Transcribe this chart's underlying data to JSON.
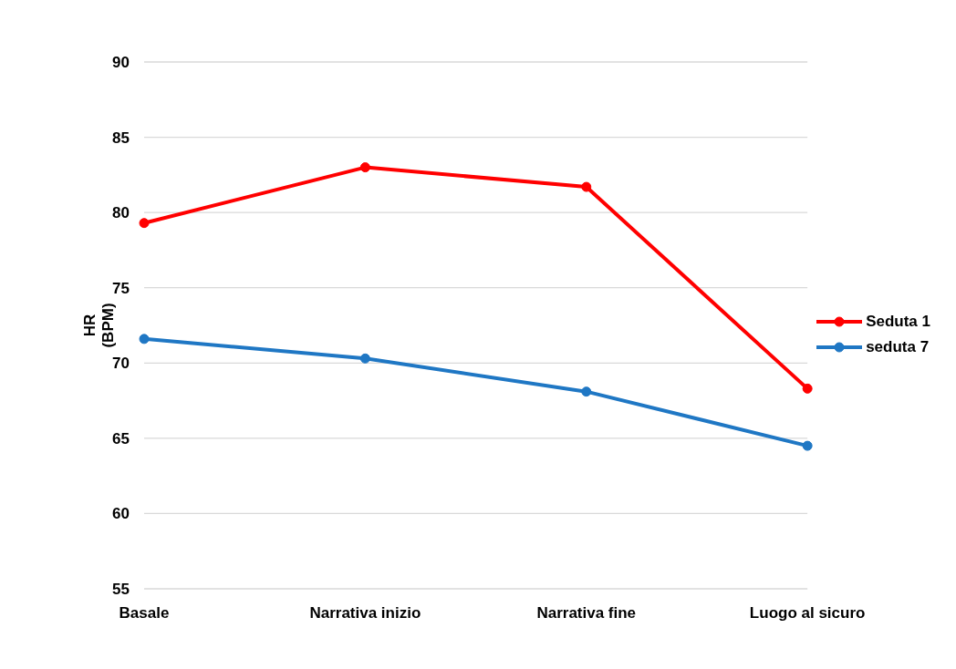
{
  "chart_data": {
    "type": "line",
    "ylabel": "HR\n(BPM)",
    "categories": [
      "Basale",
      "Narrativa inizio",
      "Narrativa fine",
      "Luogo al sicuro"
    ],
    "series": [
      {
        "name": "Seduta 1",
        "color": "#ff0000",
        "values": [
          79.3,
          83.0,
          81.7,
          68.3
        ]
      },
      {
        "name": "seduta 7",
        "color": "#1f77c4",
        "values": [
          71.6,
          70.3,
          68.1,
          64.5
        ]
      }
    ],
    "ylim": [
      55,
      90
    ],
    "yticks": [
      55,
      60,
      65,
      70,
      75,
      80,
      85,
      90
    ],
    "grid": "y",
    "legend": "right",
    "marker": "circle",
    "line_style": "solid"
  }
}
